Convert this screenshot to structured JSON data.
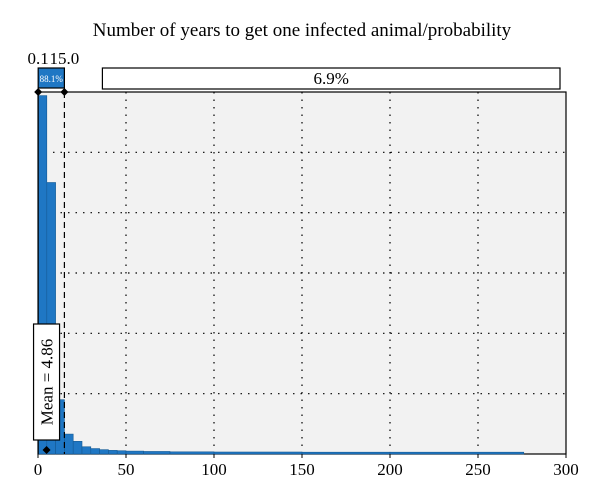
{
  "chart_data": {
    "type": "bar",
    "title": "Number of years to get one infected animal/probability",
    "xlabel": "",
    "ylabel": "",
    "xlim": [
      0,
      300
    ],
    "x_ticks": [
      "0",
      "50",
      "100",
      "150",
      "200",
      "250",
      "300"
    ],
    "grid": true,
    "bin_width": 5,
    "bins": [
      {
        "x0": 0,
        "x1": 5,
        "h": 0.99
      },
      {
        "x0": 5,
        "x1": 10,
        "h": 0.75
      },
      {
        "x0": 10,
        "x1": 15,
        "h": 0.15
      },
      {
        "x0": 15,
        "x1": 20,
        "h": 0.055
      },
      {
        "x0": 20,
        "x1": 25,
        "h": 0.035
      },
      {
        "x0": 25,
        "x1": 30,
        "h": 0.02
      },
      {
        "x0": 30,
        "x1": 35,
        "h": 0.015
      },
      {
        "x0": 35,
        "x1": 40,
        "h": 0.012
      },
      {
        "x0": 40,
        "x1": 45,
        "h": 0.01
      },
      {
        "x0": 45,
        "x1": 50,
        "h": 0.009
      },
      {
        "x0": 50,
        "x1": 60,
        "h": 0.008
      },
      {
        "x0": 60,
        "x1": 75,
        "h": 0.007
      },
      {
        "x0": 75,
        "x1": 100,
        "h": 0.006
      },
      {
        "x0": 100,
        "x1": 150,
        "h": 0.0055
      },
      {
        "x0": 150,
        "x1": 200,
        "h": 0.005
      },
      {
        "x0": 200,
        "x1": 276,
        "h": 0.005
      }
    ],
    "delimiters": {
      "left_value": "0.1",
      "right_value": "15.0",
      "left_x": 0.1,
      "right_x": 15.0,
      "left_pct": "88.1%",
      "right_pct": "6.9%"
    },
    "mean": {
      "value": 4.86,
      "label": "Mean = 4.86"
    },
    "colors": {
      "bar": "#1f77c4",
      "bar_edge": "#155a94",
      "plot_bg": "#f2f2f2",
      "left_box": "#1f77c4"
    }
  }
}
